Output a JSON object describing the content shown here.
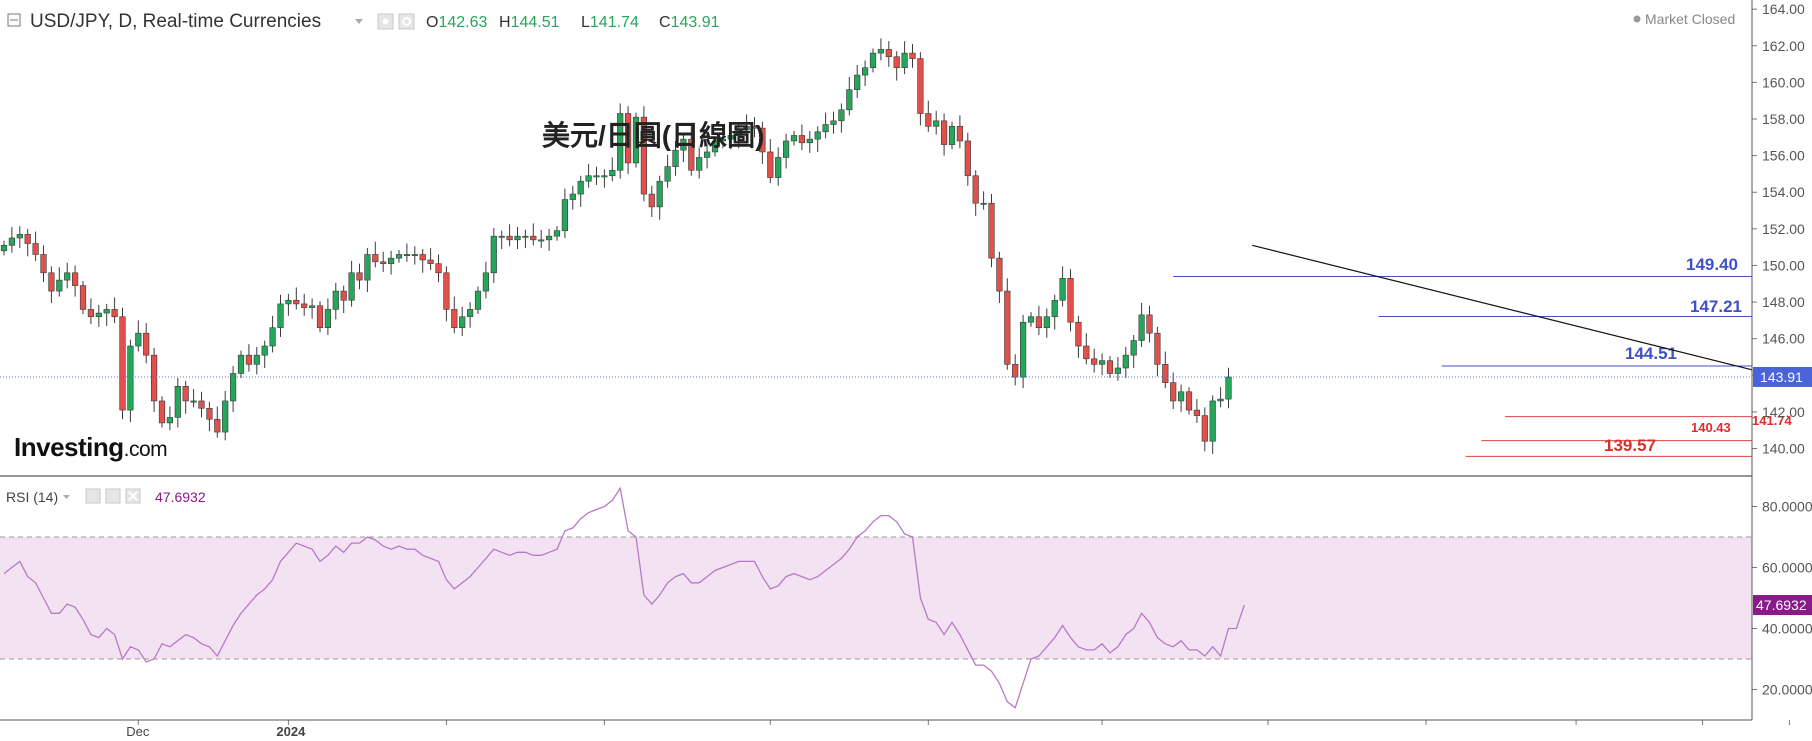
{
  "header": {
    "symbol": "USD/JPY, D, Real-time Currencies",
    "ohlc": [
      {
        "key": "O",
        "value": "142.63"
      },
      {
        "key": "H",
        "value": "144.51"
      },
      {
        "key": "L",
        "value": "141.74"
      },
      {
        "key": "C",
        "value": "143.91"
      }
    ],
    "market_status": "Market Closed"
  },
  "annotation_title": "美元/日圓(日線圖)",
  "logo_text": {
    "bold": "Investing",
    "light": ".com"
  },
  "rsi_header": {
    "name": "RSI (14)",
    "value": "47.6932"
  },
  "colors": {
    "up": "#26a65b",
    "down": "#e2504c",
    "rsi_line": "#b879c8",
    "rsi_band": "#f3e3f2",
    "blue_label": "#3f51c6",
    "red_label": "#e02b2b",
    "price_tag": "#4a63d8",
    "rsi_tag": "#8a1a8a"
  },
  "chart_data": [
    {
      "type": "candlestick",
      "name": "USD/JPY",
      "price_range": [
        138.5,
        164.5
      ],
      "yticks": [
        "164.00",
        "162.00",
        "160.00",
        "158.00",
        "156.00",
        "154.00",
        "152.00",
        "150.00",
        "148.00",
        "146.00",
        "144.00",
        "142.00",
        "140.00"
      ],
      "xtick_labels": [
        {
          "label": "Dec",
          "index": 17
        },
        {
          "label": "2024",
          "index": 36
        }
      ],
      "xtick_marks": [
        56,
        76,
        97,
        117,
        139,
        160,
        180,
        199,
        215,
        226
      ],
      "last_price": "143.91",
      "close_path": [
        151.1,
        151.5,
        151.7,
        151.2,
        150.6,
        149.6,
        148.6,
        149.2,
        149.6,
        148.9,
        147.6,
        147.2,
        147.4,
        147.6,
        147.2,
        142.1,
        145.6,
        146.3,
        145.1,
        142.6,
        141.4,
        141.7,
        143.4,
        142.6,
        142.6,
        142.2,
        141.6,
        140.9,
        142.6,
        144.1,
        145.1,
        144.6,
        145.1,
        145.6,
        146.6,
        147.9,
        148.1,
        147.9,
        147.7,
        147.8,
        146.6,
        147.6,
        148.6,
        148.1,
        149.6,
        149.2,
        150.6,
        150.2,
        150.1,
        150.4,
        150.6,
        150.6,
        150.6,
        150.3,
        150.1,
        149.6,
        147.6,
        146.6,
        147.2,
        147.6,
        148.6,
        149.6,
        151.6,
        151.6,
        151.4,
        151.6,
        151.6,
        151.4,
        151.4,
        151.6,
        151.9,
        153.6,
        153.9,
        154.6,
        154.9,
        154.9,
        154.9,
        155.2,
        158.3,
        155.6,
        158.1,
        153.9,
        153.2,
        154.6,
        155.4,
        156.3,
        156.9,
        155.2,
        155.9,
        156.2,
        156.8,
        156.9,
        157.1,
        157.4,
        157.6,
        157.5,
        156.2,
        154.8,
        155.9,
        156.8,
        157.1,
        156.7,
        156.9,
        157.3,
        157.7,
        157.9,
        158.5,
        159.6,
        160.4,
        160.8,
        161.6,
        161.8,
        161.4,
        160.8,
        161.6,
        161.3,
        158.3,
        157.6,
        157.9,
        156.6,
        157.6,
        156.8,
        154.9,
        153.4,
        153.4,
        150.4,
        148.6,
        144.6,
        143.9,
        146.9,
        147.2,
        146.6,
        147.2,
        148.1,
        149.3,
        146.9,
        145.6,
        144.9,
        144.6,
        144.8,
        144.1,
        144.4,
        145.1,
        145.9,
        147.3,
        146.3,
        144.6,
        143.6,
        142.6,
        143.1,
        142.1,
        141.8,
        140.4,
        142.6,
        142.7,
        143.91
      ],
      "annotations": [
        {
          "label": "149.40",
          "level": 149.4,
          "color": "blue"
        },
        {
          "label": "147.21",
          "level": 147.21,
          "color": "blue"
        },
        {
          "label": "144.51",
          "level": 144.51,
          "color": "blue"
        },
        {
          "label": "141.74",
          "level": 141.74,
          "color": "red"
        },
        {
          "label": "140.43",
          "level": 140.43,
          "color": "red"
        },
        {
          "label": "139.57",
          "level": 139.57,
          "color": "red"
        }
      ],
      "trendline": {
        "from": {
          "index": 158,
          "price": 151.1
        },
        "to": {
          "index": 226,
          "price": 144.3
        }
      }
    },
    {
      "type": "line",
      "name": "RSI (14)",
      "y_range": [
        10,
        90
      ],
      "yticks": [
        "80.0000",
        "60.0000",
        "40.0000",
        "20.0000"
      ],
      "band": [
        30,
        70
      ],
      "last_value": "47.6932",
      "values": [
        58,
        60,
        62,
        57,
        55,
        50,
        45,
        45,
        48,
        47,
        43,
        38,
        37,
        40,
        38,
        30,
        34,
        33,
        29,
        30,
        35,
        34,
        36,
        38,
        37,
        35,
        34,
        31,
        36,
        41,
        45,
        48,
        51,
        53,
        56,
        62,
        65,
        68,
        67,
        66,
        62,
        64,
        67,
        65,
        68,
        68,
        70,
        69,
        67,
        66,
        67,
        66,
        66,
        64,
        63,
        62,
        56,
        53,
        55,
        57,
        60,
        63,
        66,
        65,
        64,
        65,
        65,
        64,
        64,
        65,
        66,
        72,
        73,
        76,
        78,
        79,
        80,
        82,
        86,
        72,
        70,
        51,
        48,
        51,
        55,
        57,
        58,
        55,
        55,
        57,
        59,
        60,
        61,
        62,
        62,
        62,
        57,
        53,
        54,
        57,
        58,
        57,
        56,
        57,
        59,
        61,
        63,
        66,
        70,
        72,
        75,
        77,
        77,
        75,
        71,
        70,
        50,
        43,
        42,
        38,
        42,
        38,
        33,
        28,
        28,
        26,
        22,
        16,
        14,
        22,
        30,
        31,
        34,
        37,
        41,
        37,
        34,
        33,
        33,
        35,
        32,
        34,
        38,
        40,
        45,
        42,
        37,
        35,
        34,
        36,
        33,
        33,
        31,
        34,
        31,
        40,
        40,
        47.6932
      ]
    }
  ]
}
